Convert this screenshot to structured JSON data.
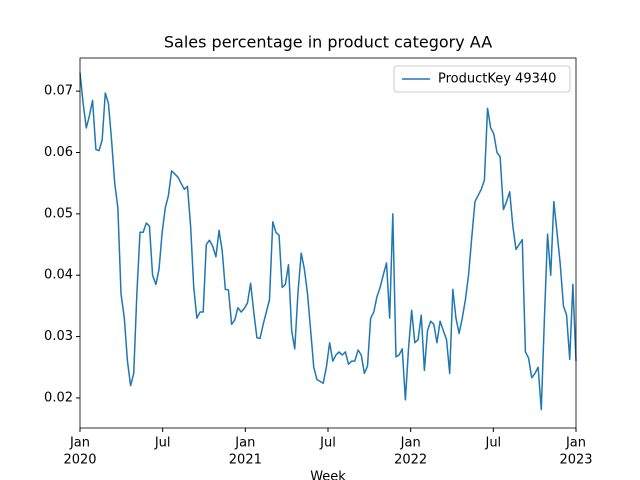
{
  "chart_data": {
    "type": "line",
    "title": "Sales percentage in product category AA",
    "xlabel": "Week",
    "x": [
      2020.0,
      2020.019,
      2020.038,
      2020.057,
      2020.076,
      2020.096,
      2020.115,
      2020.134,
      2020.153,
      2020.172,
      2020.191,
      2020.21,
      2020.229,
      2020.248,
      2020.268,
      2020.287,
      2020.306,
      2020.325,
      2020.344,
      2020.363,
      2020.382,
      2020.401,
      2020.42,
      2020.439,
      2020.459,
      2020.478,
      2020.497,
      2020.516,
      2020.535,
      2020.554,
      2020.573,
      2020.592,
      2020.611,
      2020.631,
      2020.65,
      2020.669,
      2020.688,
      2020.707,
      2020.726,
      2020.745,
      2020.764,
      2020.783,
      2020.803,
      2020.822,
      2020.841,
      2020.86,
      2020.879,
      2020.898,
      2020.917,
      2020.936,
      2020.955,
      2020.975,
      2020.994,
      2021.013,
      2021.032,
      2021.051,
      2021.07,
      2021.089,
      2021.108,
      2021.127,
      2021.146,
      2021.166,
      2021.185,
      2021.204,
      2021.223,
      2021.242,
      2021.261,
      2021.28,
      2021.299,
      2021.318,
      2021.338,
      2021.357,
      2021.376,
      2021.395,
      2021.414,
      2021.433,
      2021.452,
      2021.471,
      2021.49,
      2021.51,
      2021.529,
      2021.548,
      2021.567,
      2021.586,
      2021.605,
      2021.624,
      2021.643,
      2021.662,
      2021.682,
      2021.701,
      2021.72,
      2021.739,
      2021.758,
      2021.777,
      2021.796,
      2021.815,
      2021.834,
      2021.854,
      2021.873,
      2021.892,
      2021.911,
      2021.93,
      2021.949,
      2021.968,
      2021.987,
      2022.006,
      2022.025,
      2022.045,
      2022.064,
      2022.083,
      2022.102,
      2022.121,
      2022.14,
      2022.159,
      2022.178,
      2022.197,
      2022.217,
      2022.236,
      2022.255,
      2022.274,
      2022.293,
      2022.312,
      2022.331,
      2022.35,
      2022.369,
      2022.389,
      2022.408,
      2022.427,
      2022.446,
      2022.465,
      2022.484,
      2022.503,
      2022.522,
      2022.541,
      2022.561,
      2022.58,
      2022.599,
      2022.618,
      2022.637,
      2022.656,
      2022.675,
      2022.694,
      2022.713,
      2022.732,
      2022.752,
      2022.771,
      2022.79,
      2022.809,
      2022.828,
      2022.847,
      2022.866,
      2022.885,
      2022.904,
      2022.924,
      2022.943,
      2022.962,
      2022.981,
      2023.0
    ],
    "series": [
      {
        "name": "ProductKey 49340",
        "color": "#1f77b4",
        "values": [
          0.073,
          0.068,
          0.064,
          0.066,
          0.0685,
          0.0605,
          0.0603,
          0.062,
          0.0697,
          0.068,
          0.062,
          0.055,
          0.051,
          0.037,
          0.033,
          0.026,
          0.022,
          0.024,
          0.037,
          0.047,
          0.047,
          0.0485,
          0.048,
          0.04,
          0.0385,
          0.041,
          0.047,
          0.051,
          0.053,
          0.057,
          0.0565,
          0.056,
          0.055,
          0.054,
          0.0545,
          0.048,
          0.038,
          0.033,
          0.034,
          0.034,
          0.045,
          0.0457,
          0.0447,
          0.043,
          0.0473,
          0.044,
          0.0377,
          0.0376,
          0.032,
          0.0327,
          0.0347,
          0.034,
          0.0346,
          0.0355,
          0.0387,
          0.034,
          0.0298,
          0.0297,
          0.032,
          0.034,
          0.036,
          0.0487,
          0.047,
          0.0465,
          0.038,
          0.0385,
          0.0417,
          0.031,
          0.028,
          0.037,
          0.0436,
          0.041,
          0.037,
          0.031,
          0.025,
          0.023,
          0.0227,
          0.0224,
          0.025,
          0.029,
          0.026,
          0.027,
          0.0275,
          0.027,
          0.0275,
          0.0255,
          0.026,
          0.026,
          0.0278,
          0.027,
          0.024,
          0.0252,
          0.033,
          0.034,
          0.0365,
          0.038,
          0.04,
          0.042,
          0.033,
          0.05,
          0.0267,
          0.027,
          0.028,
          0.0197,
          0.028,
          0.0343,
          0.029,
          0.0295,
          0.0335,
          0.0245,
          0.031,
          0.0325,
          0.032,
          0.029,
          0.0325,
          0.031,
          0.0295,
          0.024,
          0.0377,
          0.033,
          0.0305,
          0.033,
          0.036,
          0.04,
          0.046,
          0.052,
          0.053,
          0.054,
          0.0555,
          0.0672,
          0.064,
          0.063,
          0.06,
          0.0593,
          0.0507,
          0.052,
          0.0536,
          0.048,
          0.0442,
          0.045,
          0.0458,
          0.0275,
          0.0265,
          0.0233,
          0.024,
          0.025,
          0.0181,
          0.033,
          0.0467,
          0.04,
          0.052,
          0.047,
          0.042,
          0.035,
          0.0335,
          0.0263,
          0.0385,
          0.026
        ]
      }
    ],
    "xlim": [
      2020,
      2023
    ],
    "xticks": [
      {
        "value": 2020,
        "label": "Jan"
      },
      {
        "value": 2020.5,
        "label": "Jul"
      },
      {
        "value": 2021,
        "label": "Jan"
      },
      {
        "value": 2021.5,
        "label": "Jul"
      },
      {
        "value": 2022,
        "label": "Jan"
      },
      {
        "value": 2022.5,
        "label": "Jul"
      },
      {
        "value": 2023,
        "label": "Jan"
      }
    ],
    "xtick_years": [
      2020,
      2021,
      2022,
      2023
    ],
    "ylim": [
      0.0151,
      0.0754
    ],
    "yticks": [
      0.02,
      0.03,
      0.04,
      0.05,
      0.06,
      0.07
    ],
    "grid": false,
    "legend": "upper right"
  }
}
